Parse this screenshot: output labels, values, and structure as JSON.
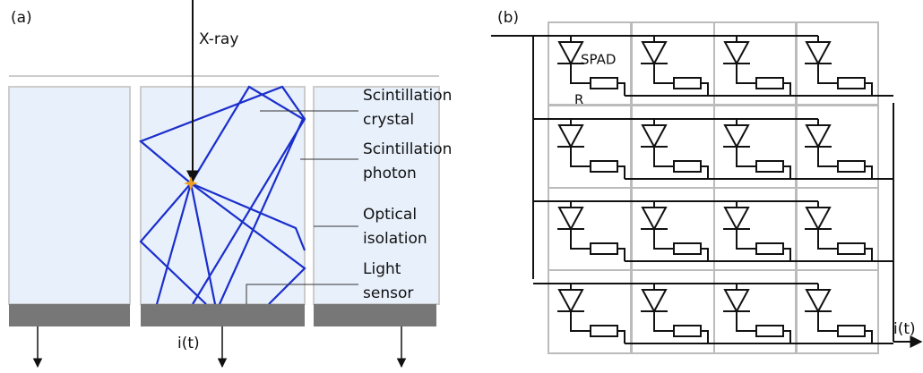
{
  "panel_a": {
    "tag": "(a)",
    "xray": "X-ray",
    "current": "i(t)",
    "labels": [
      {
        "lines": [
          "Scintillation",
          "crystal"
        ]
      },
      {
        "lines": [
          "Scintillation",
          "photon"
        ]
      },
      {
        "lines": [
          "Optical",
          "isolation"
        ]
      },
      {
        "lines": [
          "Light",
          "sensor"
        ]
      }
    ]
  },
  "panel_b": {
    "tag": "(b)",
    "spad": "SPAD",
    "resistor": "R",
    "current": "i(t)"
  }
}
